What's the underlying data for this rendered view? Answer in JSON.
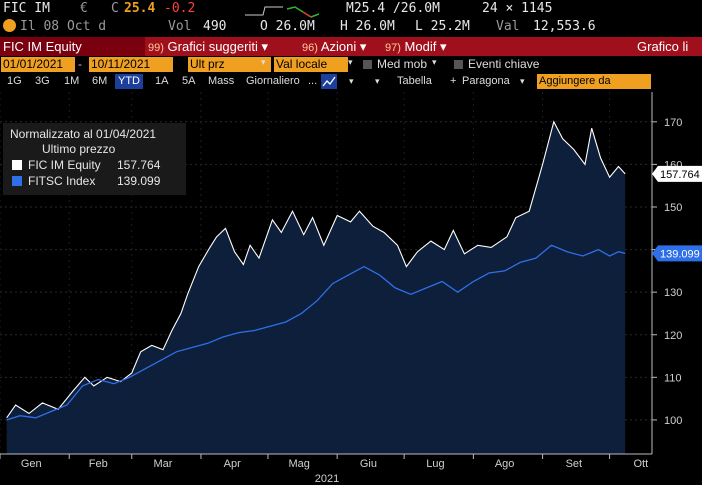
{
  "ticker": {
    "symbol": "FIC IM",
    "currency": "€",
    "close_label": "C",
    "last": "25.4",
    "change": "-0.2",
    "mid": "M25.4 /26.0M",
    "size": "24 × 1145",
    "info": "Il 08 Oct d",
    "vol_label": "Vol",
    "vol": "490",
    "open": "O 26.0M",
    "high": "H 26.0M",
    "low": "L 25.2M",
    "val_label": "Val",
    "val": "12,553.6"
  },
  "menu": {
    "security": "FIC IM Equity",
    "item1_num": "99)",
    "item1": "Grafici suggeriti",
    "item2_num": "96)",
    "item2": "Azioni",
    "item3_num": "97)",
    "item3": "Modif",
    "right_title": "Grafico li"
  },
  "filters": {
    "start_date": "01/01/2021",
    "end_date": "10/11/2021",
    "price_field": "Ult prz",
    "currency_field": "Val locale",
    "med_mob": "Med mob",
    "eventi": "Eventi chiave"
  },
  "ranges": {
    "buttons": [
      "1G",
      "3G",
      "1M",
      "6M",
      "YTD",
      "1A",
      "5A",
      "Mass",
      "Giornaliero"
    ],
    "selected": "YTD",
    "tabella": "Tabella",
    "paragona": "Paragona",
    "aggiungere": "Aggiungere da"
  },
  "legend": {
    "title": "Normalizzato al 01/04/2021",
    "subtitle": "Ultimo prezzo",
    "items": [
      {
        "name": "FIC IM Equity",
        "value": "157.764",
        "color": "#ffffff"
      },
      {
        "name": "FITSC Index",
        "value": "139.099",
        "color": "#2f6fe8"
      }
    ]
  },
  "chart_data": {
    "type": "line",
    "x_ticks": [
      "Gen",
      "Feb",
      "Mar",
      "Apr",
      "Mag",
      "Giu",
      "Lug",
      "Ago",
      "Set",
      "Ott"
    ],
    "x_year": "2021",
    "y_ticks": [
      100,
      110,
      120,
      130,
      140,
      150,
      160,
      170
    ],
    "ylim": [
      92,
      177
    ],
    "series": [
      {
        "name": "FIC IM Equity",
        "color": "#ffffff",
        "fill": "#0d1f3a",
        "last_label": "157.764",
        "points": [
          [
            "2021-01-04",
            100.5
          ],
          [
            "2021-01-08",
            103.5
          ],
          [
            "2021-01-14",
            101.5
          ],
          [
            "2021-01-20",
            104.0
          ],
          [
            "2021-01-27",
            102.5
          ],
          [
            "2021-02-03",
            107.0
          ],
          [
            "2021-02-08",
            110.0
          ],
          [
            "2021-02-12",
            108.0
          ],
          [
            "2021-02-18",
            110.0
          ],
          [
            "2021-02-24",
            109.0
          ],
          [
            "2021-03-01",
            111.0
          ],
          [
            "2021-03-05",
            116.0
          ],
          [
            "2021-03-10",
            117.5
          ],
          [
            "2021-03-15",
            116.5
          ],
          [
            "2021-03-19",
            121.0
          ],
          [
            "2021-03-23",
            125.0
          ],
          [
            "2021-03-26",
            129.5
          ],
          [
            "2021-03-31",
            136.0
          ],
          [
            "2021-04-05",
            140.5
          ],
          [
            "2021-04-08",
            143.0
          ],
          [
            "2021-04-12",
            145.0
          ],
          [
            "2021-04-16",
            139.5
          ],
          [
            "2021-04-20",
            136.5
          ],
          [
            "2021-04-23",
            141.0
          ],
          [
            "2021-04-27",
            138.0
          ],
          [
            "2021-05-03",
            147.0
          ],
          [
            "2021-05-07",
            144.0
          ],
          [
            "2021-05-12",
            149.0
          ],
          [
            "2021-05-17",
            143.5
          ],
          [
            "2021-05-21",
            147.5
          ],
          [
            "2021-05-26",
            141.0
          ],
          [
            "2021-06-01",
            148.0
          ],
          [
            "2021-06-07",
            146.5
          ],
          [
            "2021-06-11",
            149.0
          ],
          [
            "2021-06-17",
            145.5
          ],
          [
            "2021-06-22",
            144.0
          ],
          [
            "2021-06-28",
            141.0
          ],
          [
            "2021-07-02",
            136.0
          ],
          [
            "2021-07-07",
            139.5
          ],
          [
            "2021-07-13",
            142.0
          ],
          [
            "2021-07-19",
            140.0
          ],
          [
            "2021-07-23",
            144.5
          ],
          [
            "2021-07-28",
            139.0
          ],
          [
            "2021-08-03",
            141.0
          ],
          [
            "2021-08-09",
            140.5
          ],
          [
            "2021-08-16",
            143.0
          ],
          [
            "2021-08-20",
            147.5
          ],
          [
            "2021-08-26",
            149.0
          ],
          [
            "2021-09-01",
            160.0
          ],
          [
            "2021-09-06",
            170.0
          ],
          [
            "2021-09-10",
            166.0
          ],
          [
            "2021-09-15",
            163.5
          ],
          [
            "2021-09-20",
            160.0
          ],
          [
            "2021-09-23",
            168.5
          ],
          [
            "2021-09-27",
            161.5
          ],
          [
            "2021-10-01",
            157.0
          ],
          [
            "2021-10-05",
            159.5
          ],
          [
            "2021-10-08",
            157.764
          ]
        ]
      },
      {
        "name": "FITSC Index",
        "color": "#2f6fe8",
        "last_label": "139.099",
        "points": [
          [
            "2021-01-04",
            100.0
          ],
          [
            "2021-01-10",
            101.0
          ],
          [
            "2021-01-17",
            100.5
          ],
          [
            "2021-01-24",
            102.0
          ],
          [
            "2021-01-31",
            103.5
          ],
          [
            "2021-02-07",
            108.0
          ],
          [
            "2021-02-14",
            109.5
          ],
          [
            "2021-02-21",
            108.5
          ],
          [
            "2021-02-28",
            110.0
          ],
          [
            "2021-03-07",
            112.0
          ],
          [
            "2021-03-14",
            114.0
          ],
          [
            "2021-03-21",
            116.0
          ],
          [
            "2021-03-28",
            117.0
          ],
          [
            "2021-04-04",
            118.0
          ],
          [
            "2021-04-11",
            119.5
          ],
          [
            "2021-04-18",
            120.5
          ],
          [
            "2021-04-25",
            121.0
          ],
          [
            "2021-05-02",
            122.0
          ],
          [
            "2021-05-09",
            123.0
          ],
          [
            "2021-05-16",
            125.0
          ],
          [
            "2021-05-23",
            128.0
          ],
          [
            "2021-05-30",
            132.0
          ],
          [
            "2021-06-06",
            134.0
          ],
          [
            "2021-06-13",
            136.0
          ],
          [
            "2021-06-20",
            134.0
          ],
          [
            "2021-06-27",
            131.0
          ],
          [
            "2021-07-04",
            129.5
          ],
          [
            "2021-07-11",
            131.0
          ],
          [
            "2021-07-18",
            132.5
          ],
          [
            "2021-07-25",
            130.0
          ],
          [
            "2021-08-01",
            132.5
          ],
          [
            "2021-08-08",
            134.5
          ],
          [
            "2021-08-15",
            135.0
          ],
          [
            "2021-08-22",
            137.0
          ],
          [
            "2021-08-29",
            138.0
          ],
          [
            "2021-09-05",
            141.0
          ],
          [
            "2021-09-12",
            139.5
          ],
          [
            "2021-09-19",
            138.5
          ],
          [
            "2021-09-26",
            140.0
          ],
          [
            "2021-10-01",
            138.5
          ],
          [
            "2021-10-05",
            139.5
          ],
          [
            "2021-10-08",
            139.099
          ]
        ]
      }
    ]
  }
}
